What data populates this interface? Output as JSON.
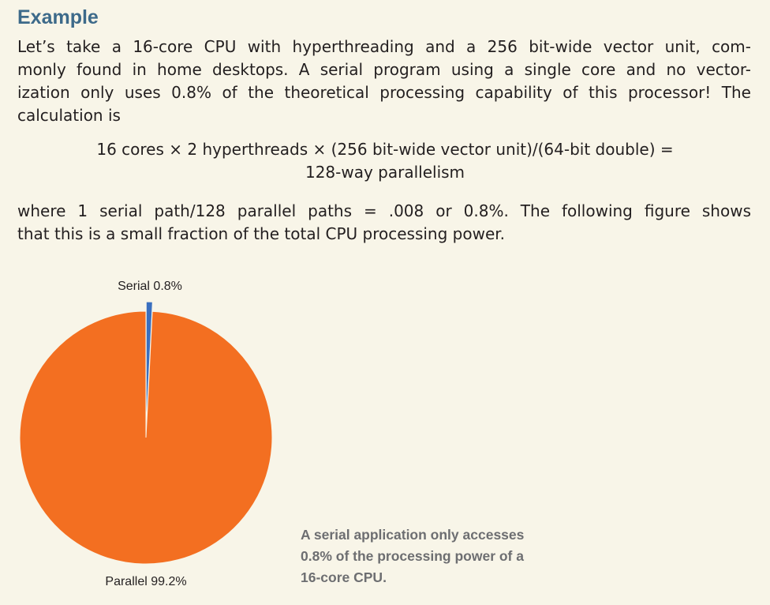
{
  "heading": "Example",
  "intro_lines": [
    "Let’s take a 16-core CPU with hyperthreading and a 256 bit-wide vector unit, com-",
    "monly found in home desktops. A serial program using a single core and no vector-",
    "ization only uses 0.8% of the theoretical processing capability of this processor! The",
    "calculation is"
  ],
  "equation": {
    "line1": "16 cores × 2 hyperthreads × (256 bit-wide vector unit)/(64-bit double) =",
    "line2": "128-way parallelism"
  },
  "followup_lines": [
    "where 1 serial path/128 parallel paths = .008 or 0.8%. The following figure shows",
    "that this is a small fraction of the total CPU processing power."
  ],
  "chart_data": {
    "type": "pie",
    "slices": [
      {
        "label": "Serial 0.8%",
        "value": 0.8,
        "color": "#3a6fbf"
      },
      {
        "label": "Parallel 99.2%",
        "value": 99.2,
        "color": "#f36f21"
      }
    ]
  },
  "caption_lines": [
    "A serial application only accesses",
    "0.8% of the processing power of a",
    "16-core CPU."
  ]
}
